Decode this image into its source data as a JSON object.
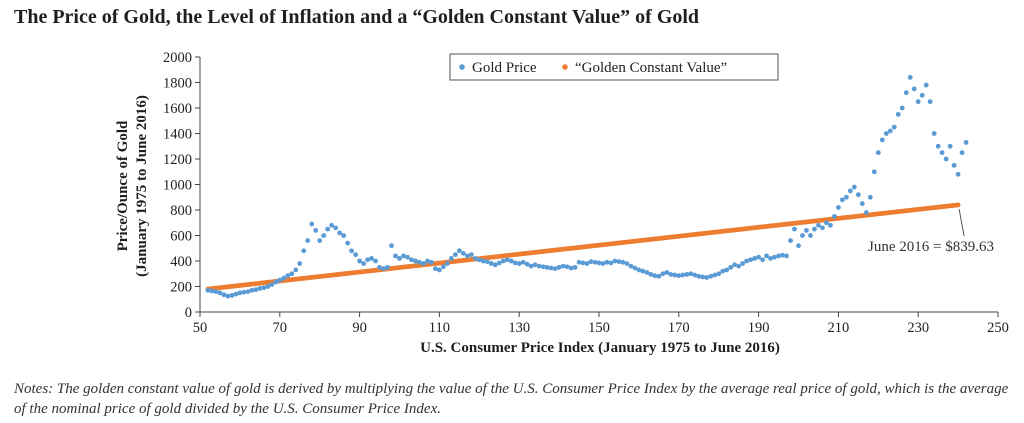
{
  "chart_data": {
    "type": "scatter",
    "title": "The Price of Gold, the Level of Inflation and a “Golden Constant Value” of Gold",
    "xlabel": "U.S. Consumer Price Index (January 1975 to June 2016)",
    "ylabel": "Price/Ounce of Gold",
    "ylabel_sub": "(January 1975 to June 2016)",
    "xlim": [
      50,
      250
    ],
    "ylim": [
      0,
      2000
    ],
    "xticks": [
      50,
      70,
      90,
      110,
      130,
      150,
      170,
      190,
      210,
      230,
      250
    ],
    "yticks": [
      0,
      200,
      400,
      600,
      800,
      1000,
      1200,
      1400,
      1600,
      1800,
      2000
    ],
    "grid": false,
    "legend_position": "top-center",
    "series": [
      {
        "name": "Gold Price",
        "color": "#5b9bd5",
        "points": [
          [
            52,
            170
          ],
          [
            53,
            165
          ],
          [
            54,
            160
          ],
          [
            55,
            150
          ],
          [
            56,
            135
          ],
          [
            57,
            125
          ],
          [
            58,
            130
          ],
          [
            59,
            140
          ],
          [
            60,
            150
          ],
          [
            61,
            155
          ],
          [
            62,
            160
          ],
          [
            63,
            170
          ],
          [
            64,
            175
          ],
          [
            65,
            185
          ],
          [
            66,
            190
          ],
          [
            67,
            200
          ],
          [
            68,
            215
          ],
          [
            69,
            235
          ],
          [
            70,
            250
          ],
          [
            71,
            265
          ],
          [
            72,
            285
          ],
          [
            73,
            300
          ],
          [
            74,
            330
          ],
          [
            75,
            380
          ],
          [
            76,
            480
          ],
          [
            77,
            560
          ],
          [
            78,
            690
          ],
          [
            79,
            640
          ],
          [
            80,
            560
          ],
          [
            81,
            600
          ],
          [
            82,
            650
          ],
          [
            83,
            680
          ],
          [
            84,
            660
          ],
          [
            85,
            620
          ],
          [
            86,
            600
          ],
          [
            87,
            540
          ],
          [
            88,
            480
          ],
          [
            89,
            450
          ],
          [
            90,
            400
          ],
          [
            91,
            380
          ],
          [
            92,
            410
          ],
          [
            93,
            420
          ],
          [
            94,
            400
          ],
          [
            95,
            350
          ],
          [
            96,
            340
          ],
          [
            97,
            350
          ],
          [
            98,
            520
          ],
          [
            99,
            440
          ],
          [
            100,
            420
          ],
          [
            101,
            440
          ],
          [
            102,
            430
          ],
          [
            103,
            410
          ],
          [
            104,
            400
          ],
          [
            105,
            390
          ],
          [
            106,
            380
          ],
          [
            107,
            400
          ],
          [
            108,
            390
          ],
          [
            109,
            340
          ],
          [
            110,
            330
          ],
          [
            111,
            355
          ],
          [
            112,
            380
          ],
          [
            113,
            420
          ],
          [
            114,
            450
          ],
          [
            115,
            480
          ],
          [
            116,
            460
          ],
          [
            117,
            440
          ],
          [
            118,
            450
          ],
          [
            119,
            420
          ],
          [
            120,
            410
          ],
          [
            121,
            400
          ],
          [
            122,
            395
          ],
          [
            123,
            380
          ],
          [
            124,
            370
          ],
          [
            125,
            385
          ],
          [
            126,
            400
          ],
          [
            127,
            410
          ],
          [
            128,
            400
          ],
          [
            129,
            385
          ],
          [
            130,
            380
          ],
          [
            131,
            390
          ],
          [
            132,
            375
          ],
          [
            133,
            360
          ],
          [
            134,
            370
          ],
          [
            135,
            360
          ],
          [
            136,
            355
          ],
          [
            137,
            350
          ],
          [
            138,
            345
          ],
          [
            139,
            340
          ],
          [
            140,
            350
          ],
          [
            141,
            360
          ],
          [
            142,
            355
          ],
          [
            143,
            345
          ],
          [
            144,
            350
          ],
          [
            145,
            390
          ],
          [
            146,
            385
          ],
          [
            147,
            380
          ],
          [
            148,
            395
          ],
          [
            149,
            390
          ],
          [
            150,
            385
          ],
          [
            151,
            380
          ],
          [
            152,
            390
          ],
          [
            153,
            385
          ],
          [
            154,
            400
          ],
          [
            155,
            395
          ],
          [
            156,
            390
          ],
          [
            157,
            380
          ],
          [
            158,
            360
          ],
          [
            159,
            345
          ],
          [
            160,
            330
          ],
          [
            161,
            320
          ],
          [
            162,
            310
          ],
          [
            163,
            295
          ],
          [
            164,
            285
          ],
          [
            165,
            280
          ],
          [
            166,
            300
          ],
          [
            167,
            310
          ],
          [
            168,
            295
          ],
          [
            169,
            290
          ],
          [
            170,
            285
          ],
          [
            171,
            290
          ],
          [
            172,
            295
          ],
          [
            173,
            300
          ],
          [
            174,
            290
          ],
          [
            175,
            280
          ],
          [
            176,
            275
          ],
          [
            177,
            270
          ],
          [
            178,
            280
          ],
          [
            179,
            290
          ],
          [
            180,
            300
          ],
          [
            181,
            320
          ],
          [
            182,
            330
          ],
          [
            183,
            350
          ],
          [
            184,
            370
          ],
          [
            185,
            360
          ],
          [
            186,
            380
          ],
          [
            187,
            400
          ],
          [
            188,
            410
          ],
          [
            189,
            420
          ],
          [
            190,
            430
          ],
          [
            191,
            410
          ],
          [
            192,
            440
          ],
          [
            193,
            420
          ],
          [
            194,
            430
          ],
          [
            195,
            440
          ],
          [
            196,
            445
          ],
          [
            197,
            440
          ],
          [
            198,
            560
          ],
          [
            199,
            650
          ],
          [
            200,
            520
          ],
          [
            201,
            600
          ],
          [
            202,
            640
          ],
          [
            203,
            600
          ],
          [
            204,
            650
          ],
          [
            205,
            680
          ],
          [
            206,
            660
          ],
          [
            207,
            700
          ],
          [
            208,
            680
          ],
          [
            209,
            750
          ],
          [
            210,
            820
          ],
          [
            211,
            880
          ],
          [
            212,
            900
          ],
          [
            213,
            950
          ],
          [
            214,
            980
          ],
          [
            215,
            920
          ],
          [
            216,
            850
          ],
          [
            217,
            780
          ],
          [
            218,
            900
          ],
          [
            219,
            1100
          ],
          [
            220,
            1250
          ],
          [
            221,
            1350
          ],
          [
            222,
            1400
          ],
          [
            223,
            1420
          ],
          [
            224,
            1450
          ],
          [
            225,
            1550
          ],
          [
            226,
            1600
          ],
          [
            227,
            1720
          ],
          [
            228,
            1840
          ],
          [
            229,
            1750
          ],
          [
            230,
            1650
          ],
          [
            231,
            1700
          ],
          [
            232,
            1780
          ],
          [
            233,
            1650
          ],
          [
            234,
            1400
          ],
          [
            235,
            1300
          ],
          [
            236,
            1250
          ],
          [
            237,
            1200
          ],
          [
            238,
            1300
          ],
          [
            239,
            1150
          ],
          [
            240,
            1080
          ],
          [
            241,
            1250
          ],
          [
            242,
            1330
          ]
        ]
      },
      {
        "name": "“Golden Constant Value”",
        "color": "#ed7d31",
        "x_start": 52,
        "x_end": 240,
        "y_start": 180,
        "y_end": 839.63
      }
    ],
    "annotations": [
      {
        "text": "June 2016 = $839.63",
        "x": 240,
        "y": 839.63
      }
    ]
  },
  "notes": "Notes: The golden constant value of gold is derived by multiplying the value of the U.S. Consumer Price Index by the average real price of gold, which is the average of the nominal price of gold divided by the U.S. Consumer Price Index."
}
